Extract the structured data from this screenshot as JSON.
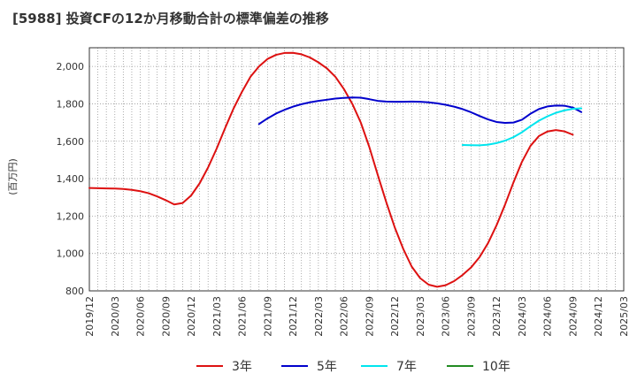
{
  "chart_data": {
    "type": "line",
    "title": "[5988]  投資CFの12か月移動合計の標準偏差の推移",
    "ylabel": "(百万円)",
    "xlabel": "",
    "ylim": [
      800,
      2100
    ],
    "yticks": [
      800,
      1000,
      1200,
      1400,
      1600,
      1800,
      2000
    ],
    "ytick_labels": [
      "800",
      "1,000",
      "1,200",
      "1,400",
      "1,600",
      "1,800",
      "2,000"
    ],
    "x_start": "2019-12",
    "x_end": "2025-03",
    "xtick_labels": [
      "2019/12",
      "2020/03",
      "2020/06",
      "2020/09",
      "2020/12",
      "2021/03",
      "2021/06",
      "2021/09",
      "2021/12",
      "2022/03",
      "2022/06",
      "2022/09",
      "2022/12",
      "2023/03",
      "2023/06",
      "2023/09",
      "2023/12",
      "2024/03",
      "2024/06",
      "2024/09",
      "2024/12",
      "2025/03"
    ],
    "grid": true,
    "legend_position": "bottom",
    "series": [
      {
        "name": "3年",
        "color": "#dd1111",
        "points": [
          [
            "2019-12",
            1350
          ],
          [
            "2020-01",
            1349
          ],
          [
            "2020-02",
            1348
          ],
          [
            "2020-03",
            1347
          ],
          [
            "2020-04",
            1345
          ],
          [
            "2020-05",
            1340
          ],
          [
            "2020-06",
            1333
          ],
          [
            "2020-07",
            1322
          ],
          [
            "2020-08",
            1305
          ],
          [
            "2020-09",
            1285
          ],
          [
            "2020-10",
            1262
          ],
          [
            "2020-11",
            1270
          ],
          [
            "2020-12",
            1310
          ],
          [
            "2021-01",
            1375
          ],
          [
            "2021-02",
            1460
          ],
          [
            "2021-03",
            1560
          ],
          [
            "2021-04",
            1670
          ],
          [
            "2021-05",
            1775
          ],
          [
            "2021-06",
            1865
          ],
          [
            "2021-07",
            1945
          ],
          [
            "2021-08",
            2000
          ],
          [
            "2021-09",
            2040
          ],
          [
            "2021-10",
            2062
          ],
          [
            "2021-11",
            2072
          ],
          [
            "2021-12",
            2073
          ],
          [
            "2022-01",
            2065
          ],
          [
            "2022-02",
            2048
          ],
          [
            "2022-03",
            2022
          ],
          [
            "2022-04",
            1990
          ],
          [
            "2022-05",
            1945
          ],
          [
            "2022-06",
            1880
          ],
          [
            "2022-07",
            1800
          ],
          [
            "2022-08",
            1700
          ],
          [
            "2022-09",
            1570
          ],
          [
            "2022-10",
            1420
          ],
          [
            "2022-11",
            1275
          ],
          [
            "2022-12",
            1140
          ],
          [
            "2023-01",
            1025
          ],
          [
            "2023-02",
            930
          ],
          [
            "2023-03",
            868
          ],
          [
            "2023-04",
            833
          ],
          [
            "2023-05",
            822
          ],
          [
            "2023-06",
            830
          ],
          [
            "2023-07",
            852
          ],
          [
            "2023-08",
            885
          ],
          [
            "2023-09",
            925
          ],
          [
            "2023-10",
            980
          ],
          [
            "2023-11",
            1055
          ],
          [
            "2023-12",
            1150
          ],
          [
            "2024-01",
            1260
          ],
          [
            "2024-02",
            1380
          ],
          [
            "2024-03",
            1490
          ],
          [
            "2024-04",
            1575
          ],
          [
            "2024-05",
            1628
          ],
          [
            "2024-06",
            1652
          ],
          [
            "2024-07",
            1660
          ],
          [
            "2024-08",
            1653
          ],
          [
            "2024-09",
            1635
          ]
        ]
      },
      {
        "name": "5年",
        "color": "#0000cc",
        "points": [
          [
            "2021-08",
            1692
          ],
          [
            "2021-09",
            1722
          ],
          [
            "2021-10",
            1748
          ],
          [
            "2021-11",
            1768
          ],
          [
            "2021-12",
            1785
          ],
          [
            "2022-01",
            1798
          ],
          [
            "2022-02",
            1808
          ],
          [
            "2022-03",
            1816
          ],
          [
            "2022-04",
            1822
          ],
          [
            "2022-05",
            1828
          ],
          [
            "2022-06",
            1832
          ],
          [
            "2022-07",
            1834
          ],
          [
            "2022-08",
            1833
          ],
          [
            "2022-09",
            1825
          ],
          [
            "2022-10",
            1816
          ],
          [
            "2022-11",
            1812
          ],
          [
            "2022-12",
            1811
          ],
          [
            "2023-01",
            1811
          ],
          [
            "2023-02",
            1812
          ],
          [
            "2023-03",
            1811
          ],
          [
            "2023-04",
            1808
          ],
          [
            "2023-05",
            1803
          ],
          [
            "2023-06",
            1795
          ],
          [
            "2023-07",
            1785
          ],
          [
            "2023-08",
            1772
          ],
          [
            "2023-09",
            1755
          ],
          [
            "2023-10",
            1735
          ],
          [
            "2023-11",
            1717
          ],
          [
            "2023-12",
            1703
          ],
          [
            "2024-01",
            1698
          ],
          [
            "2024-02",
            1700
          ],
          [
            "2024-03",
            1715
          ],
          [
            "2024-04",
            1747
          ],
          [
            "2024-05",
            1772
          ],
          [
            "2024-06",
            1786
          ],
          [
            "2024-07",
            1791
          ],
          [
            "2024-08",
            1790
          ],
          [
            "2024-09",
            1780
          ],
          [
            "2024-10",
            1756
          ]
        ]
      },
      {
        "name": "7年",
        "color": "#00e5ee",
        "points": [
          [
            "2023-08",
            1580
          ],
          [
            "2023-09",
            1579
          ],
          [
            "2023-10",
            1578
          ],
          [
            "2023-11",
            1582
          ],
          [
            "2023-12",
            1590
          ],
          [
            "2024-01",
            1603
          ],
          [
            "2024-02",
            1622
          ],
          [
            "2024-03",
            1648
          ],
          [
            "2024-04",
            1680
          ],
          [
            "2024-05",
            1710
          ],
          [
            "2024-06",
            1733
          ],
          [
            "2024-07",
            1752
          ],
          [
            "2024-08",
            1765
          ],
          [
            "2024-09",
            1773
          ],
          [
            "2024-10",
            1776
          ]
        ]
      },
      {
        "name": "10年",
        "color": "#228b22",
        "points": []
      }
    ]
  }
}
